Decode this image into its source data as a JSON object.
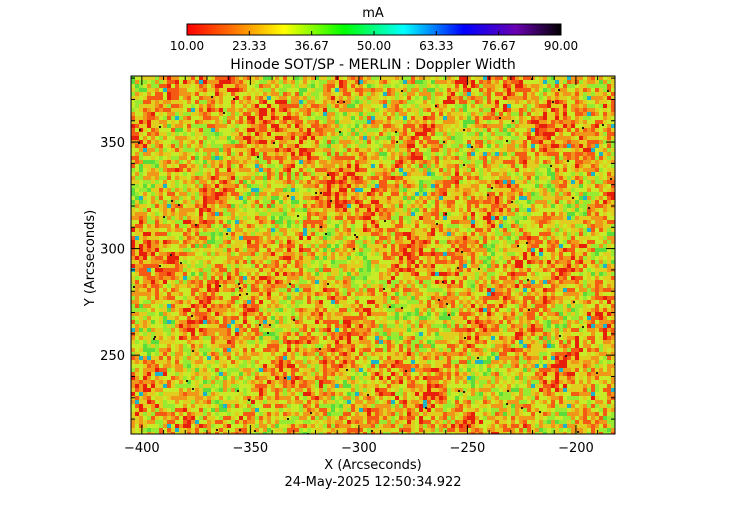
{
  "colorbar": {
    "unit_label": "mA",
    "ticks": [
      "10.00",
      "23.33",
      "36.67",
      "50.00",
      "63.33",
      "76.67",
      "90.00"
    ]
  },
  "chart_data": {
    "type": "heatmap",
    "title": "Hinode SOT/SP - MERLIN : Doppler Width",
    "xlabel": "X (Arcseconds)",
    "ylabel": "Y (Arcseconds)",
    "xlim": [
      -405,
      -182
    ],
    "ylim": [
      213,
      381
    ],
    "x_ticks": [
      "-400",
      "-350",
      "-300",
      "-250",
      "-200"
    ],
    "y_ticks": [
      "250",
      "300",
      "350"
    ],
    "colorbar_range": [
      10,
      90
    ],
    "colormap": "rainbow-reversed (red→yellow→green→cyan→blue→black)",
    "dominant_value_range": [
      20,
      50
    ],
    "description_values": "noisy granulation-like pattern, mostly red/orange/yellow/green"
  },
  "timestamp": "24-May-2025 12:50:34.922"
}
